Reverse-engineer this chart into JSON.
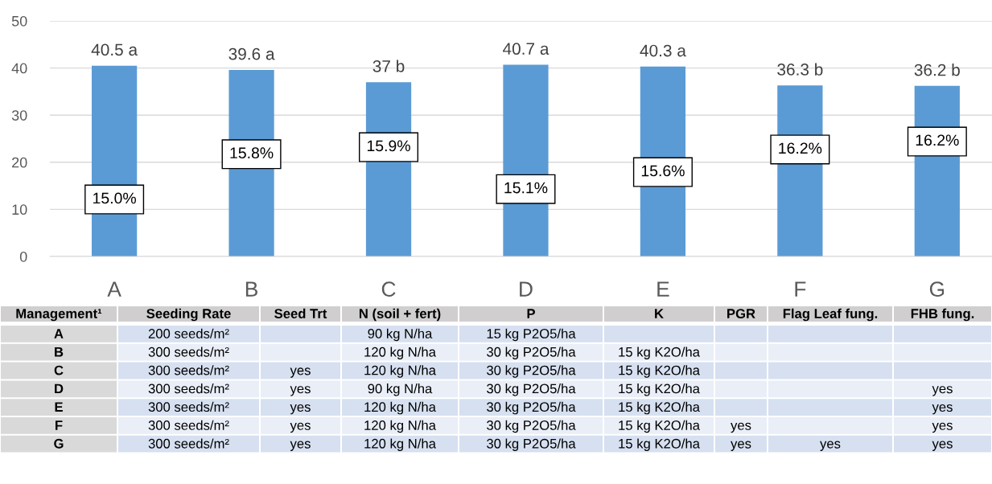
{
  "chart_data": {
    "type": "bar",
    "categories": [
      "A",
      "B",
      "C",
      "D",
      "E",
      "F",
      "G"
    ],
    "values": [
      40.5,
      39.6,
      37,
      40.7,
      40.3,
      36.3,
      36.2
    ],
    "value_labels": [
      "40.5 a",
      "39.6 a",
      "37 b",
      "40.7 a",
      "40.3 a",
      "36.3 b",
      "36.2 b"
    ],
    "color": "#5b9bd5",
    "ylim": [
      0,
      50
    ],
    "yticks": [
      0,
      10,
      20,
      30,
      40,
      50
    ],
    "grid": "y",
    "legend": false,
    "annotations": [
      "15.0%",
      "15.8%",
      "15.9%",
      "15.1%",
      "15.6%",
      "16.2%",
      "16.2%",
      "Management¹",
      "Seeding Rate",
      "Seed Trt",
      "N (soil + fert)",
      "P",
      "K",
      "PGR",
      "Flag Leaf fung.",
      "FHB fung.",
      "A",
      "200 seeds/m²",
      null,
      "90 kg N/ha",
      "15 kg P2O5/ha",
      null,
      null,
      null,
      null,
      "B",
      "300 seeds/m²",
      null,
      "120 kg N/ha",
      "30 kg P2O5/ha",
      "15 kg K2O/ha",
      null,
      null,
      null,
      "C",
      "300 seeds/m²",
      "yes",
      "120 kg N/ha",
      "30 kg P2O5/ha",
      "15 kg K2O/ha",
      null,
      null,
      null,
      "D",
      "300 seeds/m²",
      "yes",
      "90 kg N/ha",
      "30 kg P2O5/ha",
      "15 kg K2O/ha",
      null,
      null,
      "yes",
      "E",
      "300 seeds/m²",
      "yes",
      "120 kg N/ha",
      "30 kg P2O5/ha",
      "15 kg K2O/ha",
      null,
      null,
      "yes",
      "F",
      "300 seeds/m²",
      "yes",
      "120 kg N/ha",
      "30 kg P2O5/ha",
      "15 kg K2O/ha",
      "yes",
      null,
      "yes",
      "G",
      "300 seeds/m²",
      "yes",
      "120 kg N/ha",
      "30 kg P2O5/ha",
      "15 kg K2O/ha",
      "yes",
      "yes",
      "yes"
    ]
  }
}
